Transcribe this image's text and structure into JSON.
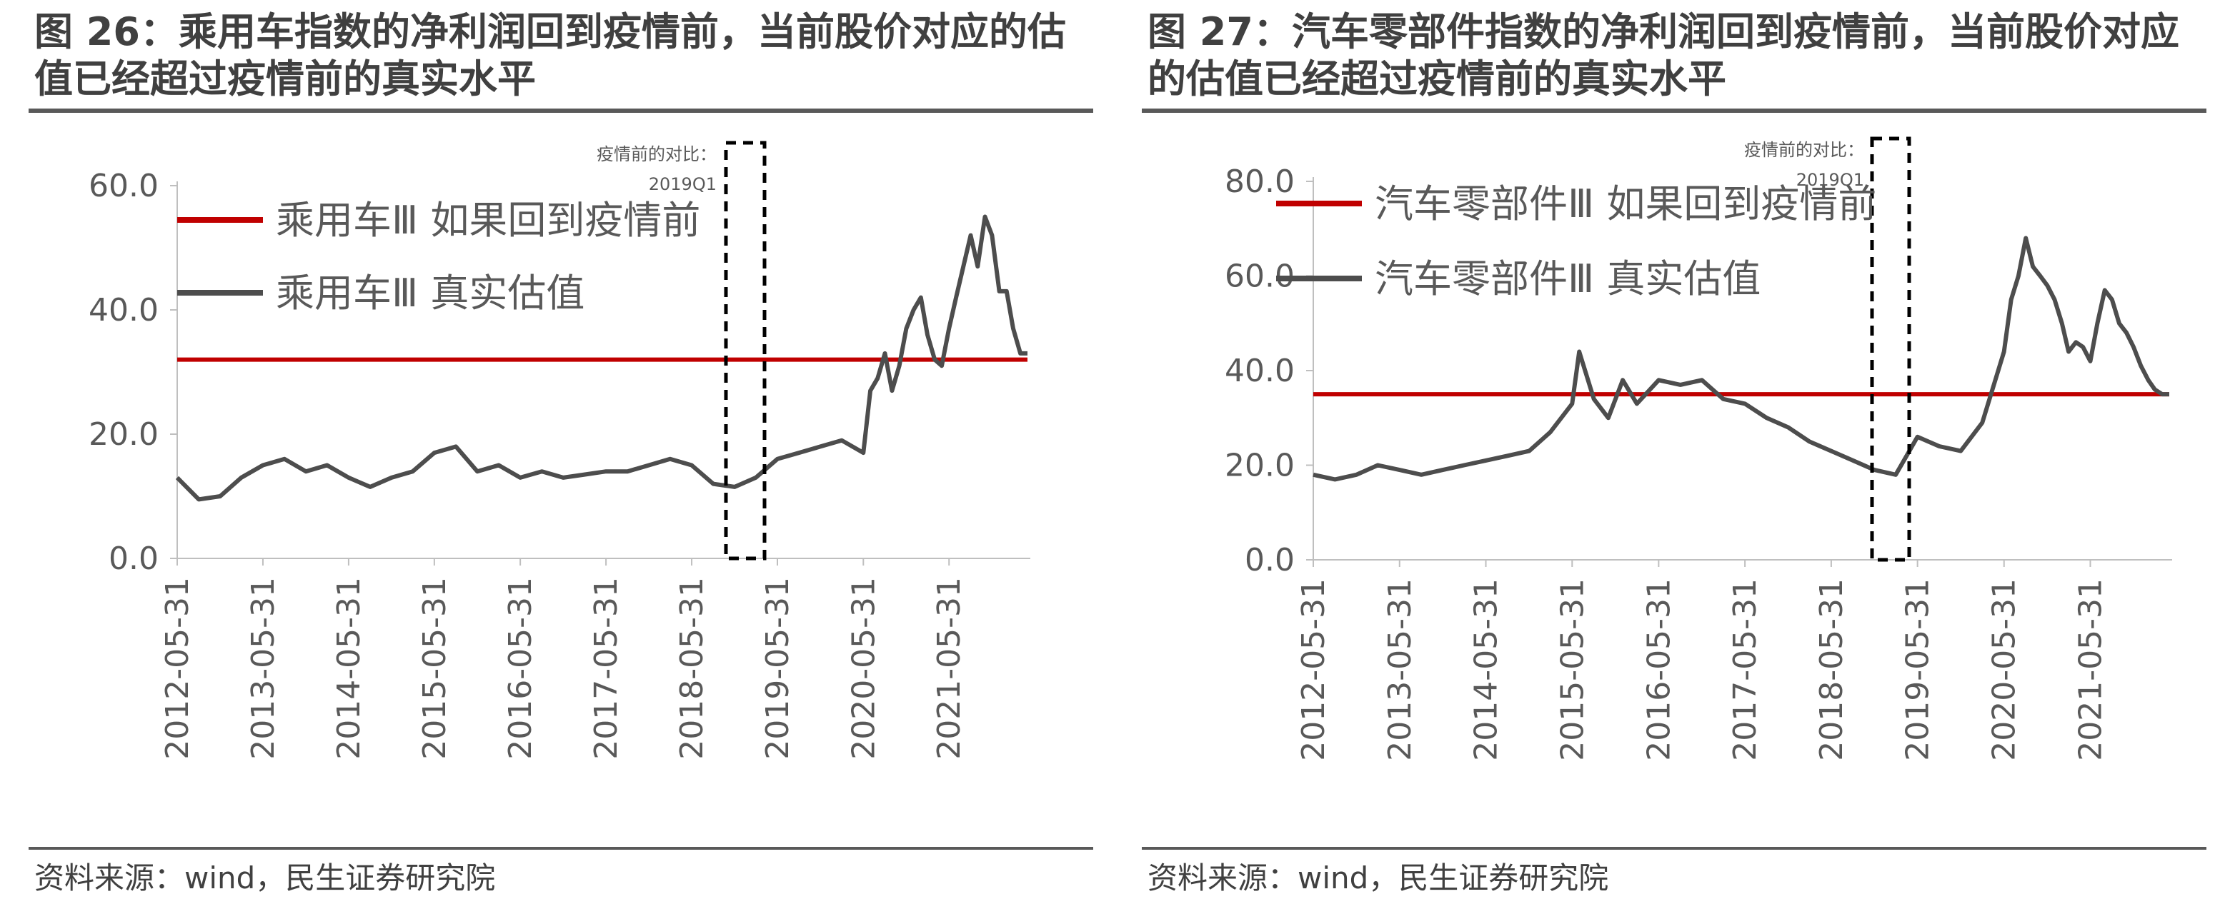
{
  "charts": [
    {
      "title": "图 26：乘用车指数的净利润回到疫情前，当前股价对应的估值已经超过疫情前的真实水平",
      "source": "资料来源：wind，民生证券研究院",
      "annotation": [
        "疫情前的对比：",
        "2019Q1"
      ],
      "colors": {
        "series_real": "#4d4d4d",
        "series_pre": "#c00000"
      }
    },
    {
      "title": "图 27：汽车零部件指数的净利润回到疫情前，当前股价对应的估值已经超过疫情前的真实水平",
      "source": "资料来源：wind，民生证券研究院",
      "annotation": [
        "疫情前的对比：",
        "2019Q1"
      ],
      "colors": {
        "series_real": "#4d4d4d",
        "series_pre": "#c00000"
      }
    }
  ],
  "chart_data": [
    {
      "type": "line",
      "x_tick_labels": [
        "2012-05-31",
        "2013-05-31",
        "2014-05-31",
        "2015-05-31",
        "2016-05-31",
        "2017-05-31",
        "2018-05-31",
        "2019-05-31",
        "2020-05-31",
        "2021-05-31"
      ],
      "y_tick_labels": [
        "0.0",
        "20.0",
        "40.0",
        "60.0"
      ],
      "ylim": [
        0,
        60
      ],
      "x_range": [
        "2012-05-31",
        "2022-04-30"
      ],
      "highlight_window": [
        "2019-01-01",
        "2019-05-31"
      ],
      "legend_placement": "top",
      "series": [
        {
          "name": "乘用车Ⅲ 如果回到疫情前",
          "color": "#c00000",
          "kind": "constant",
          "value": 32
        },
        {
          "name": "乘用车Ⅲ 真实估值",
          "color": "#4d4d4d",
          "x": [
            "2012-05-31",
            "2012-08-31",
            "2012-11-30",
            "2013-02-28",
            "2013-05-31",
            "2013-08-31",
            "2013-11-30",
            "2014-02-28",
            "2014-05-31",
            "2014-08-31",
            "2014-11-30",
            "2015-02-28",
            "2015-05-31",
            "2015-08-31",
            "2015-11-30",
            "2016-02-29",
            "2016-05-31",
            "2016-08-31",
            "2016-11-30",
            "2017-02-28",
            "2017-05-31",
            "2017-08-31",
            "2017-11-30",
            "2018-02-28",
            "2018-05-31",
            "2018-08-31",
            "2018-11-30",
            "2019-02-28",
            "2019-05-31",
            "2019-08-31",
            "2019-11-30",
            "2020-02-29",
            "2020-05-31",
            "2020-06-30",
            "2020-07-31",
            "2020-08-31",
            "2020-09-30",
            "2020-10-31",
            "2020-11-30",
            "2020-12-31",
            "2021-01-31",
            "2021-02-28",
            "2021-03-31",
            "2021-04-30",
            "2021-05-31",
            "2021-06-30",
            "2021-07-31",
            "2021-08-31",
            "2021-09-30",
            "2021-10-31",
            "2021-11-30",
            "2021-12-31",
            "2022-01-31",
            "2022-02-28",
            "2022-03-31",
            "2022-04-30"
          ],
          "y": [
            13,
            9.5,
            10,
            13,
            15,
            16,
            14,
            15,
            13,
            11.5,
            13,
            14,
            17,
            18,
            14,
            15,
            13,
            14,
            13,
            13.5,
            14,
            14,
            15,
            16,
            15,
            12,
            11.5,
            13,
            16,
            17,
            18,
            19,
            17,
            27,
            29,
            33,
            27,
            31,
            37,
            40,
            42,
            36,
            32,
            31,
            37,
            42,
            47,
            52,
            47,
            55,
            52,
            43,
            43,
            37,
            33,
            33
          ]
        }
      ]
    },
    {
      "type": "line",
      "x_tick_labels": [
        "2012-05-31",
        "2013-05-31",
        "2014-05-31",
        "2015-05-31",
        "2016-05-31",
        "2017-05-31",
        "2018-05-31",
        "2019-05-31",
        "2020-05-31",
        "2021-05-31"
      ],
      "y_tick_labels": [
        "0.0",
        "20.0",
        "40.0",
        "60.0",
        "80.0"
      ],
      "ylim": [
        0,
        80
      ],
      "x_range": [
        "2012-05-31",
        "2022-04-30"
      ],
      "highlight_window": [
        "2019-01-01",
        "2019-05-31"
      ],
      "legend_placement": "top",
      "series": [
        {
          "name": "汽车零部件Ⅲ 如果回到疫情前",
          "color": "#c00000",
          "kind": "constant",
          "value": 35
        },
        {
          "name": "汽车零部件Ⅲ 真实估值",
          "color": "#4d4d4d",
          "x": [
            "2012-05-31",
            "2012-08-31",
            "2012-11-30",
            "2013-02-28",
            "2013-05-31",
            "2013-08-31",
            "2013-11-30",
            "2014-02-28",
            "2014-05-31",
            "2014-08-31",
            "2014-11-30",
            "2015-02-28",
            "2015-05-31",
            "2015-06-30",
            "2015-08-31",
            "2015-10-31",
            "2015-12-31",
            "2016-02-29",
            "2016-05-31",
            "2016-08-31",
            "2016-11-30",
            "2017-02-28",
            "2017-05-31",
            "2017-08-31",
            "2017-11-30",
            "2018-02-28",
            "2018-05-31",
            "2018-08-31",
            "2018-11-30",
            "2019-02-28",
            "2019-05-31",
            "2019-08-31",
            "2019-11-30",
            "2020-02-29",
            "2020-05-31",
            "2020-06-30",
            "2020-07-31",
            "2020-08-31",
            "2020-09-30",
            "2020-10-31",
            "2020-11-30",
            "2020-12-31",
            "2021-01-31",
            "2021-02-28",
            "2021-03-31",
            "2021-04-30",
            "2021-05-31",
            "2021-06-30",
            "2021-07-31",
            "2021-08-31",
            "2021-09-30",
            "2021-10-31",
            "2021-11-30",
            "2021-12-31",
            "2022-01-31",
            "2022-02-28",
            "2022-03-31",
            "2022-04-30"
          ],
          "y": [
            18,
            17,
            18,
            20,
            19,
            18,
            19,
            20,
            21,
            22,
            23,
            27,
            33,
            44,
            34,
            30,
            38,
            33,
            38,
            37,
            38,
            34,
            33,
            30,
            28,
            25,
            23,
            21,
            19,
            18,
            26,
            24,
            23,
            29,
            44,
            55,
            60,
            68,
            62,
            60,
            58,
            55,
            50,
            44,
            46,
            45,
            42,
            50,
            57,
            55,
            50,
            48,
            45,
            41,
            38,
            36,
            35,
            35
          ]
        }
      ]
    }
  ]
}
